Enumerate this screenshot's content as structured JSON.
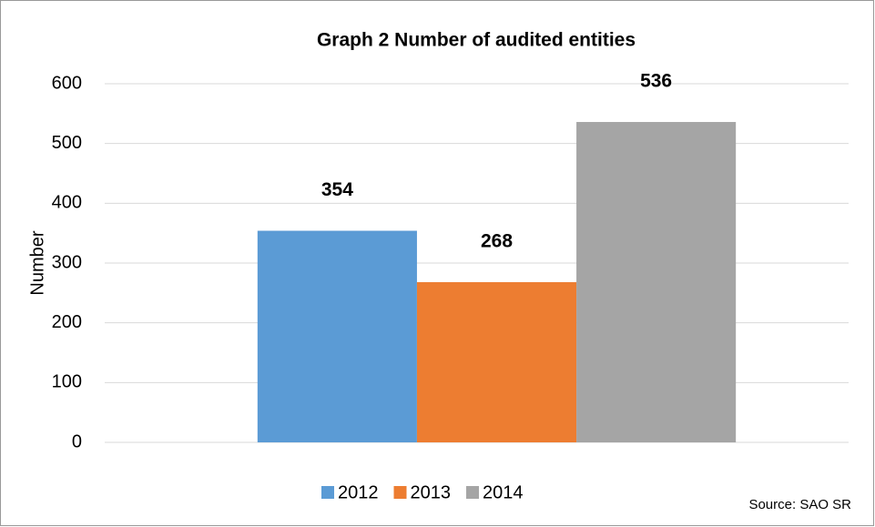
{
  "chart_data": {
    "type": "bar",
    "title": "Graph 2 Number of audited entities",
    "y_label": "Number",
    "source": "Source: SAO SR",
    "categories": [
      null
    ],
    "series": [
      {
        "name": "2012",
        "color": "#5b9bd5",
        "values": [
          354
        ]
      },
      {
        "name": "2013",
        "color": "#ed7d31",
        "values": [
          268
        ]
      },
      {
        "name": "2014",
        "color": "#a5a5a5",
        "values": [
          536
        ]
      }
    ],
    "ylim": [
      0,
      600
    ],
    "yticks": [
      0,
      100,
      200,
      300,
      400,
      500,
      600
    ],
    "grid": true,
    "legend": "bottom"
  }
}
